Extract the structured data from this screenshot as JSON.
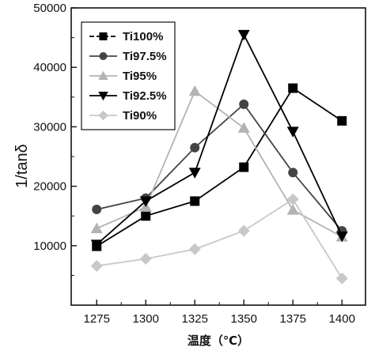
{
  "chart_data": {
    "type": "line",
    "title": "",
    "xlabel": "温度（℃）",
    "ylabel": "1/tanδ",
    "x": [
      1275,
      1300,
      1325,
      1350,
      1375,
      1400
    ],
    "x_tick_labels": [
      "1275",
      "1300",
      "1325",
      "1350",
      "1375",
      "1400"
    ],
    "xlim": [
      1262,
      1412
    ],
    "ylim": [
      0,
      50000
    ],
    "y_ticks": [
      10000,
      20000,
      30000,
      40000,
      50000
    ],
    "y_tick_labels": [
      "10000",
      "20000",
      "30000",
      "40000",
      "50000"
    ],
    "grid": false,
    "legend_position": "top-left",
    "series": [
      {
        "name": "Ti100%",
        "marker": "square",
        "color": "#000000",
        "values": [
          9900,
          15000,
          17500,
          23200,
          36500,
          31000
        ]
      },
      {
        "name": "Ti97.5%",
        "marker": "circle",
        "color": "#444444",
        "values": [
          16100,
          18000,
          26500,
          33800,
          22300,
          12500
        ]
      },
      {
        "name": "Ti95%",
        "marker": "triangle-up",
        "color": "#b3b3b3",
        "values": [
          12900,
          16500,
          36000,
          29800,
          16000,
          11500
        ]
      },
      {
        "name": "Ti92.5%",
        "marker": "triangle-down",
        "color": "#000000",
        "values": [
          10200,
          17500,
          22300,
          45500,
          29200,
          11600
        ]
      },
      {
        "name": "Ti90%",
        "marker": "diamond",
        "color": "#c8c8c8",
        "values": [
          6600,
          7800,
          9400,
          12500,
          17800,
          4500
        ]
      }
    ]
  }
}
